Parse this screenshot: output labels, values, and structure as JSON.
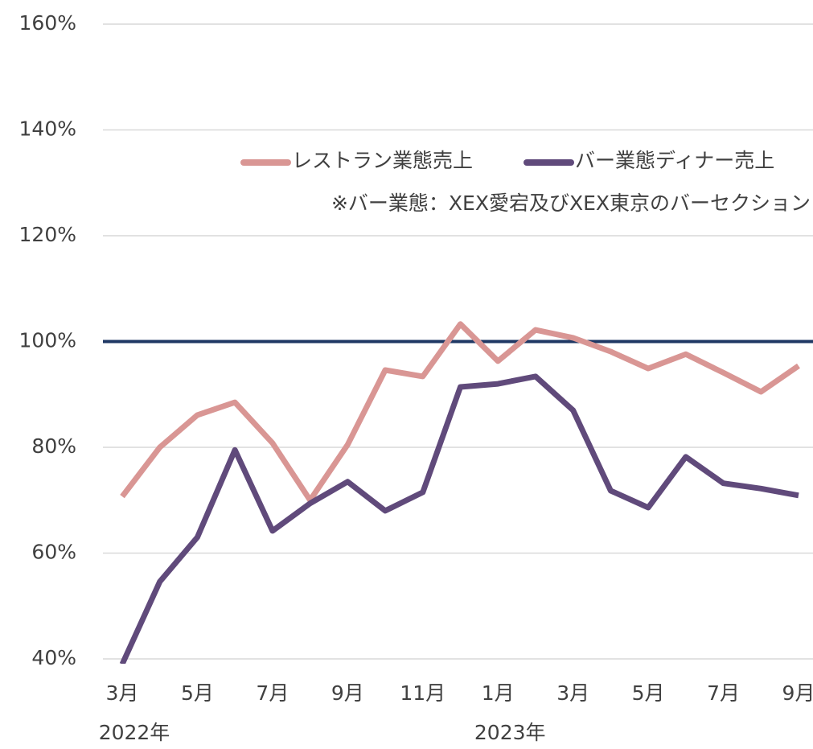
{
  "chart_data": {
    "type": "line",
    "categories": [
      "3月",
      null,
      "5月",
      null,
      "7月",
      null,
      "9月",
      null,
      "11月",
      null,
      "1月",
      null,
      "3月",
      null,
      "5月",
      null,
      "7月",
      null,
      "9月"
    ],
    "years": [
      "2022年",
      null,
      null,
      null,
      null,
      null,
      null,
      null,
      null,
      null,
      "2023年",
      null,
      null,
      null,
      null,
      null,
      null,
      null,
      null
    ],
    "series": [
      {
        "name": "レストラン業態売上",
        "color": "#d99694",
        "values": [
          70.7,
          80,
          86.1,
          88.5,
          80.8,
          70,
          80.5,
          94.6,
          93.4,
          103.3,
          96.3,
          102.2,
          100.7,
          98.1,
          94.9,
          97.6,
          94.1,
          90.5,
          95.4
        ]
      },
      {
        "name": "バー業態ディナー売上",
        "color": "#604a7b",
        "values": [
          39,
          54.6,
          63,
          79.5,
          64.2,
          69.4,
          73.5,
          68,
          71.5,
          91.4,
          92,
          93.4,
          87,
          71.8,
          68.6,
          78.2,
          73.2,
          72.2,
          70.9
        ]
      }
    ],
    "note": "※バー業態：XEX愛宕及びXEX東京のバーセクション",
    "reference_line": {
      "value": 100,
      "color": "#1f3864"
    },
    "ylim": [
      40,
      160
    ],
    "yticks": [
      {
        "value": 40,
        "label": "40%"
      },
      {
        "value": 60,
        "label": "60%"
      },
      {
        "value": 80,
        "label": "80%"
      },
      {
        "value": 100,
        "label": "100%"
      },
      {
        "value": 120,
        "label": "120%"
      },
      {
        "value": 140,
        "label": "140%"
      },
      {
        "value": 160,
        "label": "160%"
      }
    ],
    "grid": true
  }
}
